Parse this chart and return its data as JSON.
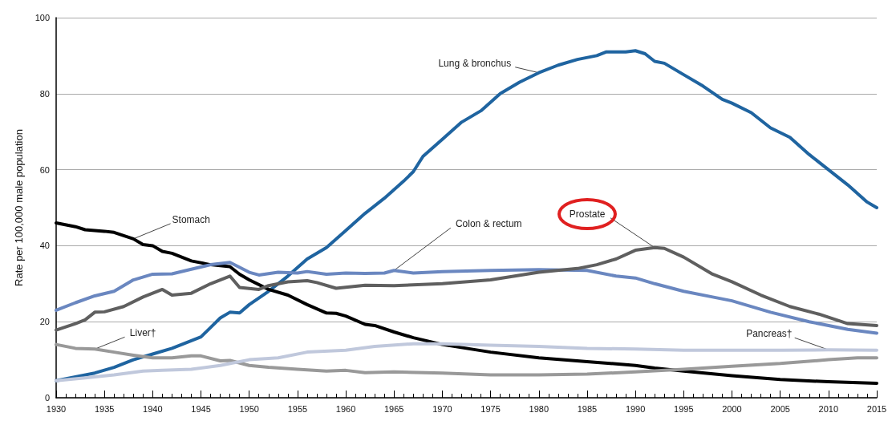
{
  "chart_data": {
    "type": "line",
    "ylabel": "Rate per 100,000 male population",
    "xlim": [
      1930,
      2015
    ],
    "xticks": [
      1930,
      1935,
      1940,
      1945,
      1950,
      1955,
      1960,
      1965,
      1970,
      1975,
      1980,
      1985,
      1990,
      1995,
      2000,
      2005,
      2010,
      2015
    ],
    "ylim": [
      0,
      100
    ],
    "yticks": [
      0,
      20,
      40,
      60,
      80,
      100
    ],
    "grid": "y",
    "marker": "none",
    "line_style": "solid",
    "series": [
      {
        "name": "Lung & bronchus",
        "color": "#1f64a0",
        "x": [
          1930,
          1932,
          1934,
          1936,
          1938,
          1940,
          1942,
          1944,
          1945,
          1946,
          1947,
          1948,
          1949,
          1950,
          1952,
          1954,
          1956,
          1958,
          1960,
          1962,
          1964,
          1966,
          1967,
          1968,
          1970,
          1972,
          1974,
          1976,
          1978,
          1980,
          1982,
          1984,
          1986,
          1987,
          1989,
          1990,
          1991,
          1992,
          1993,
          1995,
          1997,
          1999,
          2000,
          2002,
          2004,
          2006,
          2008,
          2010,
          2012,
          2014,
          2015
        ],
        "values": [
          4.5,
          5.5,
          6.5,
          8,
          10,
          11.5,
          13,
          15,
          16,
          18.5,
          21,
          22.5,
          22.3,
          24.5,
          28,
          32,
          36.5,
          39.5,
          44,
          48.5,
          52.5,
          57,
          59.5,
          63.5,
          68,
          72.5,
          75.5,
          80,
          83,
          85.5,
          87.5,
          89,
          90,
          91,
          91,
          91.3,
          90.5,
          88.5,
          88,
          85,
          82,
          78.5,
          77.5,
          75,
          71,
          68.5,
          64,
          60,
          56,
          51.5,
          50
        ]
      },
      {
        "name": "Stomach",
        "color": "#000000",
        "x": [
          1930,
          1932,
          1933,
          1935,
          1936,
          1938,
          1939,
          1940,
          1941,
          1942,
          1944,
          1946,
          1948,
          1949,
          1950,
          1952,
          1954,
          1956,
          1958,
          1959,
          1960,
          1962,
          1963,
          1965,
          1967,
          1970,
          1975,
          1980,
          1985,
          1990,
          1992,
          1995,
          2000,
          2005,
          2010,
          2015
        ],
        "values": [
          46,
          45,
          44.2,
          43.8,
          43.5,
          41.8,
          40.3,
          40,
          38.5,
          38,
          36,
          35,
          34.5,
          32.5,
          31,
          28.5,
          27,
          24.5,
          22.3,
          22.2,
          21.5,
          19.3,
          19,
          17.3,
          15.8,
          14,
          12,
          10.5,
          9.5,
          8.5,
          7.8,
          7,
          5.8,
          4.8,
          4.2,
          3.8
        ]
      },
      {
        "name": "Colon & rectum",
        "color": "#6a87c0",
        "x": [
          1930,
          1932,
          1934,
          1936,
          1938,
          1940,
          1942,
          1944,
          1946,
          1948,
          1950,
          1951,
          1953,
          1955,
          1956,
          1958,
          1960,
          1962,
          1964,
          1965,
          1967,
          1970,
          1975,
          1980,
          1985,
          1988,
          1990,
          1992,
          1995,
          1998,
          2000,
          2004,
          2008,
          2012,
          2015
        ],
        "values": [
          23,
          25,
          26.8,
          28,
          31,
          32.5,
          32.6,
          33.8,
          35,
          35.6,
          33,
          32.3,
          33,
          32.8,
          33.2,
          32.5,
          32.8,
          32.7,
          32.8,
          33.5,
          32.8,
          33.2,
          33.5,
          33.7,
          33.5,
          32,
          31.5,
          30,
          28,
          26.5,
          25.5,
          22.5,
          20,
          18,
          17
        ]
      },
      {
        "name": "Prostate",
        "color": "#5f5f5f",
        "x": [
          1930,
          1932,
          1933,
          1934,
          1935,
          1937,
          1939,
          1941,
          1942,
          1944,
          1946,
          1948,
          1949,
          1951,
          1952,
          1954,
          1956,
          1957,
          1959,
          1962,
          1965,
          1970,
          1975,
          1980,
          1984,
          1986,
          1988,
          1990,
          1992,
          1993,
          1995,
          1998,
          2000,
          2003,
          2006,
          2009,
          2012,
          2015
        ],
        "values": [
          17.8,
          19.5,
          20.5,
          22.5,
          22.6,
          24,
          26.5,
          28.5,
          27,
          27.5,
          30,
          32,
          29,
          28.5,
          29.5,
          30.5,
          30.8,
          30.3,
          28.8,
          29.6,
          29.5,
          30,
          31,
          33,
          34,
          35,
          36.5,
          38.8,
          39.5,
          39.3,
          37,
          32.5,
          30.5,
          27,
          24,
          22,
          19.5,
          19
        ]
      },
      {
        "name": "Liver†",
        "color": "#999999",
        "x": [
          1930,
          1932,
          1934,
          1936,
          1938,
          1940,
          1942,
          1944,
          1945,
          1947,
          1948,
          1950,
          1952,
          1955,
          1958,
          1960,
          1962,
          1965,
          1970,
          1975,
          1980,
          1985,
          1990,
          1995,
          2000,
          2005,
          2010,
          2013,
          2015
        ],
        "values": [
          14,
          13,
          12.8,
          12,
          11.2,
          10.5,
          10.5,
          11,
          11,
          9.7,
          9.8,
          8.5,
          8,
          7.5,
          7,
          7.2,
          6.6,
          6.8,
          6.5,
          6,
          6,
          6.2,
          6.8,
          7.5,
          8.3,
          9,
          10,
          10.5,
          10.5
        ]
      },
      {
        "name": "Pancreas†",
        "color": "#c0c8dc",
        "x": [
          1930,
          1933,
          1936,
          1939,
          1941,
          1944,
          1947,
          1950,
          1953,
          1956,
          1960,
          1963,
          1967,
          1970,
          1975,
          1980,
          1985,
          1990,
          1995,
          2000,
          2005,
          2010,
          2015
        ],
        "values": [
          4.5,
          5.2,
          6,
          7,
          7.2,
          7.5,
          8.5,
          10,
          10.5,
          12,
          12.5,
          13.5,
          14.2,
          14.2,
          13.8,
          13.5,
          13,
          12.8,
          12.5,
          12.5,
          12.5,
          12.6,
          12.5
        ]
      }
    ]
  }
}
